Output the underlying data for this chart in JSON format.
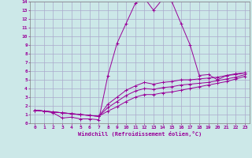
{
  "xlabel": "Windchill (Refroidissement éolien,°C)",
  "xlim": [
    -0.5,
    23.5
  ],
  "ylim": [
    0,
    14
  ],
  "xticks": [
    0,
    1,
    2,
    3,
    4,
    5,
    6,
    7,
    8,
    9,
    10,
    11,
    12,
    13,
    14,
    15,
    16,
    17,
    18,
    19,
    20,
    21,
    22,
    23
  ],
  "yticks": [
    0,
    1,
    2,
    3,
    4,
    5,
    6,
    7,
    8,
    9,
    10,
    11,
    12,
    13,
    14
  ],
  "bg_color": "#cce8e8",
  "line_color": "#990099",
  "grid_color": "#aaaacc",
  "series": [
    {
      "x": [
        0,
        1,
        2,
        3,
        4,
        5,
        6,
        7,
        8,
        9,
        10,
        11,
        12,
        13,
        14,
        15,
        16,
        17,
        18,
        19,
        20,
        21,
        22,
        23
      ],
      "y": [
        1.5,
        1.4,
        1.2,
        0.6,
        0.7,
        0.5,
        0.5,
        0.4,
        5.5,
        9.2,
        11.5,
        13.8,
        14.4,
        13.0,
        14.3,
        14.0,
        11.5,
        9.0,
        5.5,
        5.6,
        5.0,
        5.5,
        5.7,
        5.8
      ]
    },
    {
      "x": [
        0,
        1,
        2,
        3,
        4,
        5,
        6,
        7,
        8,
        9,
        10,
        11,
        12,
        13,
        14,
        15,
        16,
        17,
        18,
        19,
        20,
        21,
        22,
        23
      ],
      "y": [
        1.5,
        1.4,
        1.3,
        1.2,
        1.1,
        1.0,
        0.9,
        0.8,
        2.2,
        3.0,
        3.8,
        4.3,
        4.7,
        4.5,
        4.7,
        4.8,
        5.0,
        5.0,
        5.1,
        5.2,
        5.3,
        5.5,
        5.6,
        5.8
      ]
    },
    {
      "x": [
        0,
        1,
        2,
        3,
        4,
        5,
        6,
        7,
        8,
        9,
        10,
        11,
        12,
        13,
        14,
        15,
        16,
        17,
        18,
        19,
        20,
        21,
        22,
        23
      ],
      "y": [
        1.5,
        1.4,
        1.3,
        1.2,
        1.1,
        1.0,
        0.9,
        0.8,
        1.8,
        2.5,
        3.2,
        3.7,
        4.0,
        3.9,
        4.1,
        4.2,
        4.4,
        4.5,
        4.6,
        4.7,
        4.9,
        5.1,
        5.3,
        5.6
      ]
    },
    {
      "x": [
        0,
        1,
        2,
        3,
        4,
        5,
        6,
        7,
        8,
        9,
        10,
        11,
        12,
        13,
        14,
        15,
        16,
        17,
        18,
        19,
        20,
        21,
        22,
        23
      ],
      "y": [
        1.5,
        1.4,
        1.3,
        1.2,
        1.1,
        1.0,
        0.9,
        0.8,
        1.4,
        1.9,
        2.5,
        3.0,
        3.3,
        3.3,
        3.5,
        3.6,
        3.8,
        4.0,
        4.2,
        4.4,
        4.6,
        4.8,
        5.1,
        5.4
      ]
    }
  ]
}
